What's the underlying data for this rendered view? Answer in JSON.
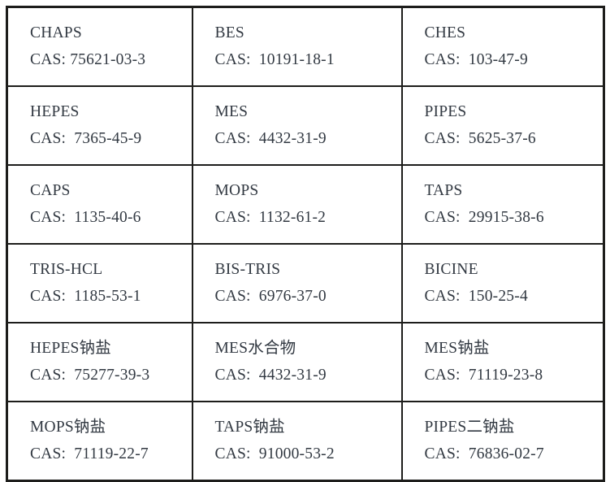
{
  "colors": {
    "border": "#1d1d1b",
    "text": "#323942",
    "background": "#ffffff"
  },
  "table": {
    "columns": 3,
    "rows": [
      [
        {
          "name": "CHAPS",
          "cas": "CAS: 75621-03-3"
        },
        {
          "name": "BES",
          "cas": "CAS:  10191-18-1"
        },
        {
          "name": "CHES",
          "cas": "CAS:  103-47-9"
        }
      ],
      [
        {
          "name": "HEPES",
          "cas": "CAS:  7365-45-9"
        },
        {
          "name": "MES",
          "cas": "CAS:  4432-31-9"
        },
        {
          "name": "PIPES",
          "cas": "CAS:  5625-37-6"
        }
      ],
      [
        {
          "name": "CAPS",
          "cas": "CAS:  1135-40-6"
        },
        {
          "name": "MOPS",
          "cas": "CAS:  1132-61-2"
        },
        {
          "name": "TAPS",
          "cas": "CAS:  29915-38-6"
        }
      ],
      [
        {
          "name": "TRIS-HCL",
          "cas": "CAS:  1185-53-1"
        },
        {
          "name": "BIS-TRIS",
          "cas": "CAS:  6976-37-0"
        },
        {
          "name": "BICINE",
          "cas": "CAS:  150-25-4"
        }
      ],
      [
        {
          "name": "HEPES钠盐",
          "cas": "CAS:  75277-39-3"
        },
        {
          "name": "MES水合物",
          "cas": "CAS:  4432-31-9"
        },
        {
          "name": "MES钠盐",
          "cas": "CAS:  71119-23-8"
        }
      ],
      [
        {
          "name": "MOPS钠盐",
          "cas": "CAS:  71119-22-7"
        },
        {
          "name": "TAPS钠盐",
          "cas": "CAS:  91000-53-2"
        },
        {
          "name": "PIPES二钠盐",
          "cas": "CAS:  76836-02-7"
        }
      ]
    ]
  }
}
